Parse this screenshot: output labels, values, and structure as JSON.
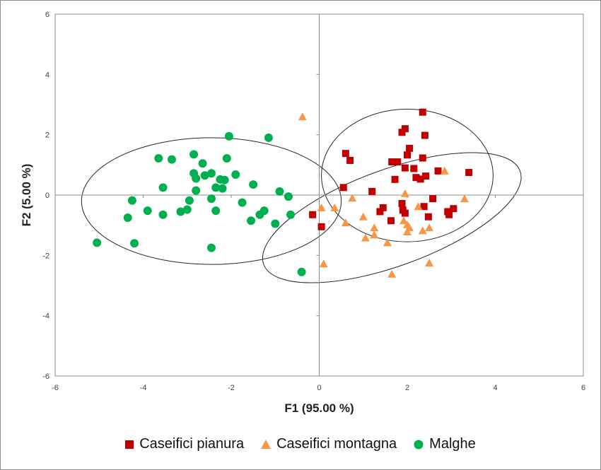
{
  "chart_data": {
    "type": "scatter",
    "xlabel": "F1 (95.00 %)",
    "ylabel": "F2 (5.00 %)",
    "xlim": [
      -6,
      6
    ],
    "ylim": [
      -6,
      6
    ],
    "xticks": [
      "-6",
      "-4",
      "-2",
      "0",
      "2",
      "4",
      "6"
    ],
    "yticks": [
      "6",
      "4",
      "2",
      "0",
      "-2",
      "-4",
      "-6"
    ],
    "grid": false,
    "legend_position": "bottom",
    "series": [
      {
        "name": "Caseifici pianura",
        "marker": "square",
        "color": "#c00000",
        "points": [
          [
            2.35,
            2.75
          ],
          [
            1.95,
            2.2
          ],
          [
            1.88,
            2.08
          ],
          [
            2.4,
            1.98
          ],
          [
            2.05,
            1.55
          ],
          [
            2.0,
            1.33
          ],
          [
            0.6,
            1.38
          ],
          [
            0.7,
            1.15
          ],
          [
            1.65,
            1.1
          ],
          [
            1.78,
            1.1
          ],
          [
            2.35,
            1.23
          ],
          [
            1.95,
            0.9
          ],
          [
            2.15,
            0.88
          ],
          [
            2.7,
            0.8
          ],
          [
            3.4,
            0.75
          ],
          [
            2.42,
            0.63
          ],
          [
            2.2,
            0.58
          ],
          [
            2.3,
            0.53
          ],
          [
            1.72,
            0.52
          ],
          [
            0.55,
            0.25
          ],
          [
            1.2,
            0.12
          ],
          [
            2.58,
            -0.12
          ],
          [
            1.88,
            -0.28
          ],
          [
            2.38,
            -0.38
          ],
          [
            1.45,
            -0.42
          ],
          [
            3.05,
            -0.45
          ],
          [
            1.9,
            -0.5
          ],
          [
            1.38,
            -0.55
          ],
          [
            1.95,
            -0.6
          ],
          [
            2.92,
            -0.55
          ],
          [
            2.95,
            -0.65
          ],
          [
            -0.15,
            -0.65
          ],
          [
            2.48,
            -0.72
          ],
          [
            1.63,
            -0.85
          ],
          [
            0.05,
            -1.05
          ]
        ]
      },
      {
        "name": "Caseifici montagna",
        "marker": "triangle",
        "color": "#f79646",
        "points": [
          [
            -0.38,
            2.6
          ],
          [
            2.85,
            0.8
          ],
          [
            1.95,
            0.05
          ],
          [
            3.3,
            -0.12
          ],
          [
            0.75,
            -0.1
          ],
          [
            2.25,
            -0.38
          ],
          [
            0.05,
            -0.42
          ],
          [
            0.35,
            -0.42
          ],
          [
            1.0,
            -0.72
          ],
          [
            1.92,
            -0.85
          ],
          [
            2.0,
            -0.98
          ],
          [
            0.6,
            -0.92
          ],
          [
            1.25,
            -1.08
          ],
          [
            2.05,
            -1.08
          ],
          [
            2.5,
            -1.08
          ],
          [
            2.35,
            -1.18
          ],
          [
            2.0,
            -1.22
          ],
          [
            1.25,
            -1.32
          ],
          [
            1.05,
            -1.42
          ],
          [
            1.55,
            -1.58
          ],
          [
            0.1,
            -2.28
          ],
          [
            2.5,
            -2.25
          ],
          [
            1.65,
            -2.62
          ]
        ]
      },
      {
        "name": "Malghe",
        "marker": "circle",
        "color": "#00b050",
        "points": [
          [
            -2.05,
            1.95
          ],
          [
            -1.15,
            1.9
          ],
          [
            -2.85,
            1.35
          ],
          [
            -3.65,
            1.22
          ],
          [
            -3.35,
            1.18
          ],
          [
            -2.65,
            1.05
          ],
          [
            -2.1,
            1.22
          ],
          [
            -2.85,
            0.72
          ],
          [
            -2.6,
            0.65
          ],
          [
            -2.45,
            0.72
          ],
          [
            -1.9,
            0.68
          ],
          [
            -2.8,
            0.55
          ],
          [
            -2.25,
            0.52
          ],
          [
            -2.15,
            0.5
          ],
          [
            -3.55,
            0.25
          ],
          [
            -2.35,
            0.25
          ],
          [
            -2.2,
            0.22
          ],
          [
            -1.5,
            0.35
          ],
          [
            -2.8,
            0.15
          ],
          [
            -0.9,
            0.12
          ],
          [
            -2.45,
            -0.12
          ],
          [
            -4.25,
            -0.18
          ],
          [
            -2.95,
            -0.18
          ],
          [
            -1.75,
            -0.25
          ],
          [
            -0.7,
            -0.05
          ],
          [
            -3.0,
            -0.48
          ],
          [
            -3.9,
            -0.52
          ],
          [
            -3.15,
            -0.55
          ],
          [
            -2.35,
            -0.52
          ],
          [
            -1.25,
            -0.52
          ],
          [
            -3.55,
            -0.65
          ],
          [
            -1.35,
            -0.65
          ],
          [
            -0.65,
            -0.65
          ],
          [
            -4.35,
            -0.75
          ],
          [
            -1.55,
            -0.85
          ],
          [
            -1.0,
            -0.95
          ],
          [
            -5.05,
            -1.58
          ],
          [
            -4.2,
            -1.6
          ],
          [
            -2.45,
            -1.75
          ],
          [
            -0.4,
            -2.55
          ]
        ]
      }
    ],
    "ellipses": [
      {
        "series": "Malghe",
        "cx": -2.45,
        "cy": -0.2,
        "rx": 2.95,
        "ry": 2.1,
        "angle": 0
      },
      {
        "series": "Caseifici pianura",
        "cx": 2.0,
        "cy": 0.65,
        "rx": 1.95,
        "ry": 2.2,
        "angle": 0
      },
      {
        "series": "Caseifici montagna",
        "cx": 1.65,
        "cy": -0.75,
        "rx": 3.1,
        "ry": 1.6,
        "angle": -20
      }
    ]
  }
}
